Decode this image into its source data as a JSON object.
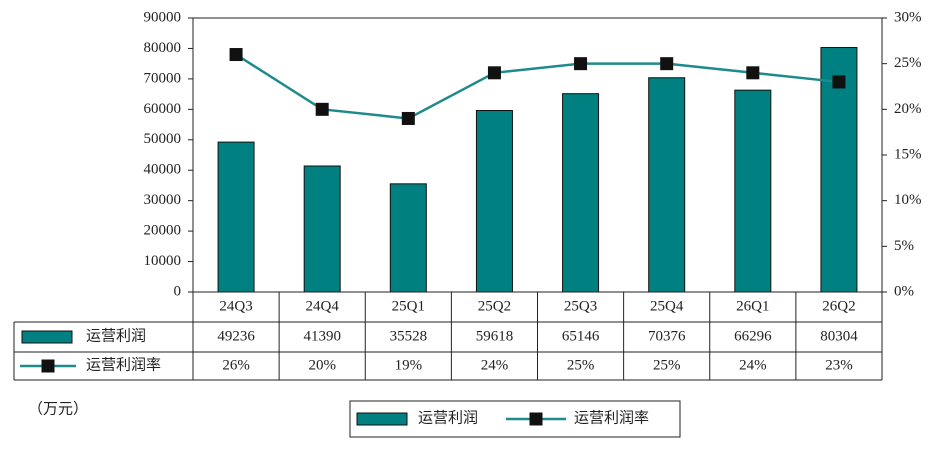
{
  "chart_data": {
    "type": "bar",
    "unit_label": "（万元）",
    "categories": [
      "24Q3",
      "24Q4",
      "25Q1",
      "25Q2",
      "25Q3",
      "25Q4",
      "26Q1",
      "26Q2"
    ],
    "series": [
      {
        "name": "运营利润",
        "color": "#008080",
        "values": [
          49236,
          41390,
          35528,
          59618,
          65146,
          70376,
          66296,
          80304
        ]
      },
      {
        "name": "运营利润率",
        "color": "#1f8a8a",
        "type": "line",
        "axis": "y2",
        "values": [
          26,
          20,
          19,
          24,
          25,
          25,
          24,
          23
        ],
        "value_labels": [
          "26%",
          "20%",
          "19%",
          "24%",
          "25%",
          "25%",
          "24%",
          "23%"
        ]
      }
    ],
    "ylim": [
      0,
      90000
    ],
    "yticks": [
      0,
      10000,
      20000,
      30000,
      40000,
      50000,
      60000,
      70000,
      80000,
      90000
    ],
    "y2lim": [
      0,
      30
    ],
    "y2ticks": [
      {
        "value": 0,
        "label": "0%"
      },
      {
        "value": 5,
        "label": "5%"
      },
      {
        "value": 10,
        "label": "10%"
      },
      {
        "value": 15,
        "label": "15%"
      },
      {
        "value": 20,
        "label": "20%"
      },
      {
        "value": 25,
        "label": "25%"
      },
      {
        "value": 30,
        "label": "30%"
      }
    ],
    "legend": "bottom"
  }
}
